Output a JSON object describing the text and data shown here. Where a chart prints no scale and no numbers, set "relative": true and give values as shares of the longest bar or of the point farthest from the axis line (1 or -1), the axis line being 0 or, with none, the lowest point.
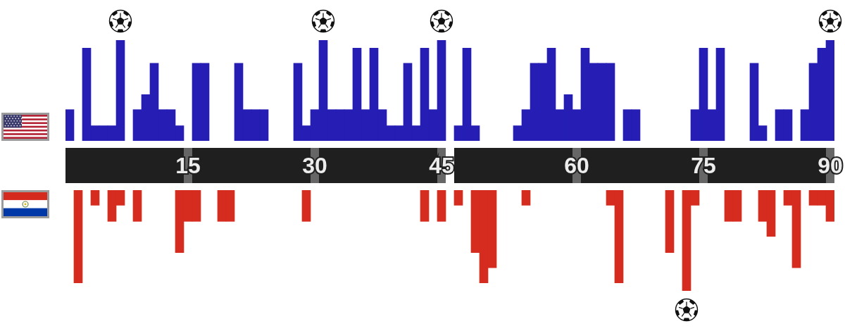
{
  "chart_data": [
    {
      "type": "bar",
      "relative": true,
      "color": "#261eb4",
      "categories": [
        null,
        null,
        null,
        null,
        null,
        null,
        null,
        null,
        null,
        null,
        null,
        null,
        null,
        null,
        "15",
        null,
        null,
        null,
        null,
        null,
        null,
        null,
        null,
        null,
        null,
        null,
        null,
        null,
        null,
        "30",
        null,
        null,
        null,
        null,
        null,
        null,
        null,
        null,
        null,
        null,
        null,
        null,
        null,
        null,
        "45",
        null,
        null,
        null,
        null,
        null,
        null,
        null,
        null,
        null,
        null,
        null,
        null,
        null,
        null,
        null,
        "60",
        null,
        null,
        null,
        null,
        null,
        null,
        null,
        null,
        null,
        null,
        null,
        null,
        null,
        null,
        "75",
        null,
        null,
        null,
        null,
        null,
        null,
        null,
        null,
        null,
        null,
        null,
        null,
        null,
        null,
        "90"
      ],
      "values": [
        0.31,
        null,
        0.92,
        0.15,
        0.15,
        0.15,
        1,
        null,
        0.31,
        0.46,
        0.77,
        0.31,
        0.31,
        0.15,
        null,
        0.77,
        0.77,
        null,
        null,
        null,
        0.77,
        0.31,
        0.31,
        0.31,
        null,
        null,
        null,
        0.77,
        0.15,
        0.31,
        1,
        0.31,
        0.31,
        0.31,
        0.92,
        0.31,
        0.92,
        0.31,
        0.15,
        0.15,
        0.77,
        0.15,
        0.92,
        0.31,
        1,
        null,
        0.15,
        0.92,
        0.15,
        null,
        null,
        null,
        null,
        0.15,
        0.31,
        0.77,
        0.77,
        0.92,
        0.31,
        0.46,
        0.31,
        0.92,
        0.77,
        0.77,
        0.77,
        null,
        0.31,
        0.31,
        null,
        null,
        null,
        null,
        null,
        null,
        0.31,
        0.92,
        0.31,
        0.92,
        null,
        null,
        null,
        0.77,
        0.15,
        null,
        0.31,
        0.31,
        null,
        0.31,
        0.77,
        0.92,
        1
      ]
    },
    {
      "type": "bar",
      "relative": true,
      "color": "#d62b1f",
      "tick_labels": false,
      "categories": [
        null,
        null,
        null,
        null,
        null,
        null,
        null,
        null,
        null,
        null,
        null,
        null,
        null,
        null,
        "15",
        null,
        null,
        null,
        null,
        null,
        null,
        null,
        null,
        null,
        null,
        null,
        null,
        null,
        null,
        "30",
        null,
        null,
        null,
        null,
        null,
        null,
        null,
        null,
        null,
        null,
        null,
        null,
        null,
        null,
        "45",
        null,
        null,
        null,
        null,
        null,
        null,
        null,
        null,
        null,
        null,
        null,
        null,
        null,
        null,
        null,
        "60",
        null,
        null,
        null,
        null,
        null,
        null,
        null,
        null,
        null,
        null,
        null,
        null,
        null,
        null,
        "75",
        null,
        null,
        null,
        null,
        null,
        null,
        null,
        null,
        null,
        null,
        null,
        null,
        null,
        null,
        "90"
      ],
      "values": [
        null,
        -0.92,
        null,
        -0.15,
        null,
        -0.31,
        -0.15,
        null,
        -0.31,
        null,
        null,
        null,
        null,
        -0.62,
        -0.31,
        -0.31,
        null,
        null,
        -0.31,
        -0.31,
        null,
        null,
        null,
        null,
        null,
        null,
        null,
        null,
        -0.31,
        null,
        null,
        null,
        null,
        null,
        null,
        null,
        null,
        null,
        null,
        null,
        null,
        null,
        -0.31,
        null,
        -0.31,
        null,
        -0.15,
        null,
        -0.62,
        -0.92,
        -0.77,
        null,
        null,
        null,
        -0.15,
        null,
        null,
        null,
        null,
        null,
        null,
        null,
        null,
        null,
        -0.15,
        -0.92,
        null,
        null,
        null,
        null,
        null,
        -0.62,
        null,
        -1,
        -0.15,
        null,
        null,
        null,
        -0.31,
        -0.31,
        null,
        null,
        -0.31,
        -0.46,
        null,
        -0.15,
        -0.77,
        null,
        -0.15,
        -0.15,
        -0.31
      ]
    }
  ]
}
